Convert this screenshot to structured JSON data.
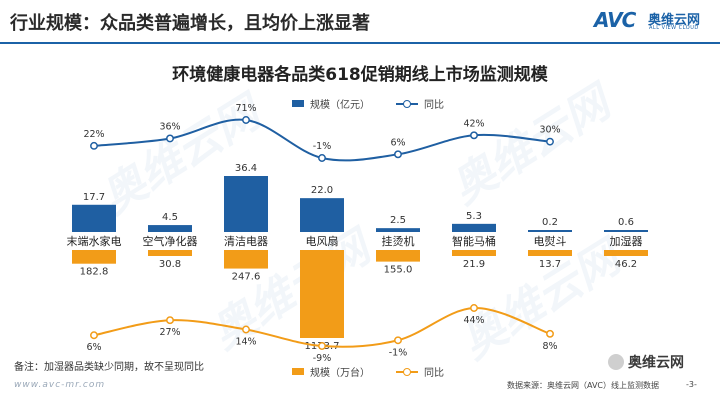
{
  "header": {
    "title": "行业规模：众品类普遍增长，且均价上涨显著",
    "brand_mark": "AVC",
    "brand_cn": "奥维云网",
    "brand_en": "ALL VIEW CLOUD"
  },
  "watermark": {
    "text": "奥维云网"
  },
  "colors": {
    "accent": "#1b62a7",
    "bar_blue": "#1f5fa2",
    "bar_orange": "#f29c18"
  },
  "chart_data": {
    "type": "bar",
    "title": "环境健康电器各品类618促销期线上市场监测规模",
    "categories": [
      "末端水家电",
      "空气净化器",
      "清洁电器",
      "电风扇",
      "挂烫机",
      "智能马桶",
      "电熨斗",
      "加湿器"
    ],
    "series": [
      {
        "name": "规模（亿元）",
        "type": "bar",
        "direction": "up",
        "color": "#1f5fa2",
        "values": [
          17.7,
          4.5,
          36.4,
          22.0,
          2.5,
          5.3,
          0.2,
          0.6
        ],
        "labels": [
          "17.7",
          "4.5",
          "36.4",
          "22.0",
          "2.5",
          "5.3",
          "0.2",
          "0.6"
        ]
      },
      {
        "name": "同比",
        "type": "line",
        "color": "#1f5fa2",
        "values": [
          22,
          36,
          71,
          -1,
          6,
          42,
          30,
          null
        ],
        "labels": [
          "22%",
          "36%",
          "71%",
          "-1%",
          "6%",
          "42%",
          "30%",
          ""
        ]
      },
      {
        "name": "规模（万台）",
        "type": "bar",
        "direction": "down",
        "color": "#f29c18",
        "values": [
          182.8,
          30.8,
          247.6,
          1173.7,
          155.0,
          21.9,
          13.7,
          46.2
        ],
        "labels": [
          "182.8",
          "30.8",
          "247.6",
          "1173.7",
          "155.0",
          "21.9",
          "13.7",
          "46.2"
        ]
      },
      {
        "name": "同比",
        "type": "line",
        "color": "#f29c18",
        "values": [
          6,
          27,
          14,
          -9,
          -1,
          44,
          8,
          null
        ],
        "labels": [
          "6%",
          "27%",
          "14%",
          "-9%",
          "-1%",
          "44%",
          "8%",
          ""
        ]
      }
    ]
  },
  "legend": {
    "top": {
      "bar": "规模（亿元）",
      "line": "同比"
    },
    "bottom": {
      "bar": "规模（万台）",
      "line": "同比"
    }
  },
  "footer": {
    "note": "备注：加湿器品类缺少同期，故不呈现同比",
    "url": "www.avc-mr.com",
    "source": "数据来源：奥维云网（AVC）线上监测数据",
    "page": "-3-",
    "wechat": "奥维云网"
  }
}
